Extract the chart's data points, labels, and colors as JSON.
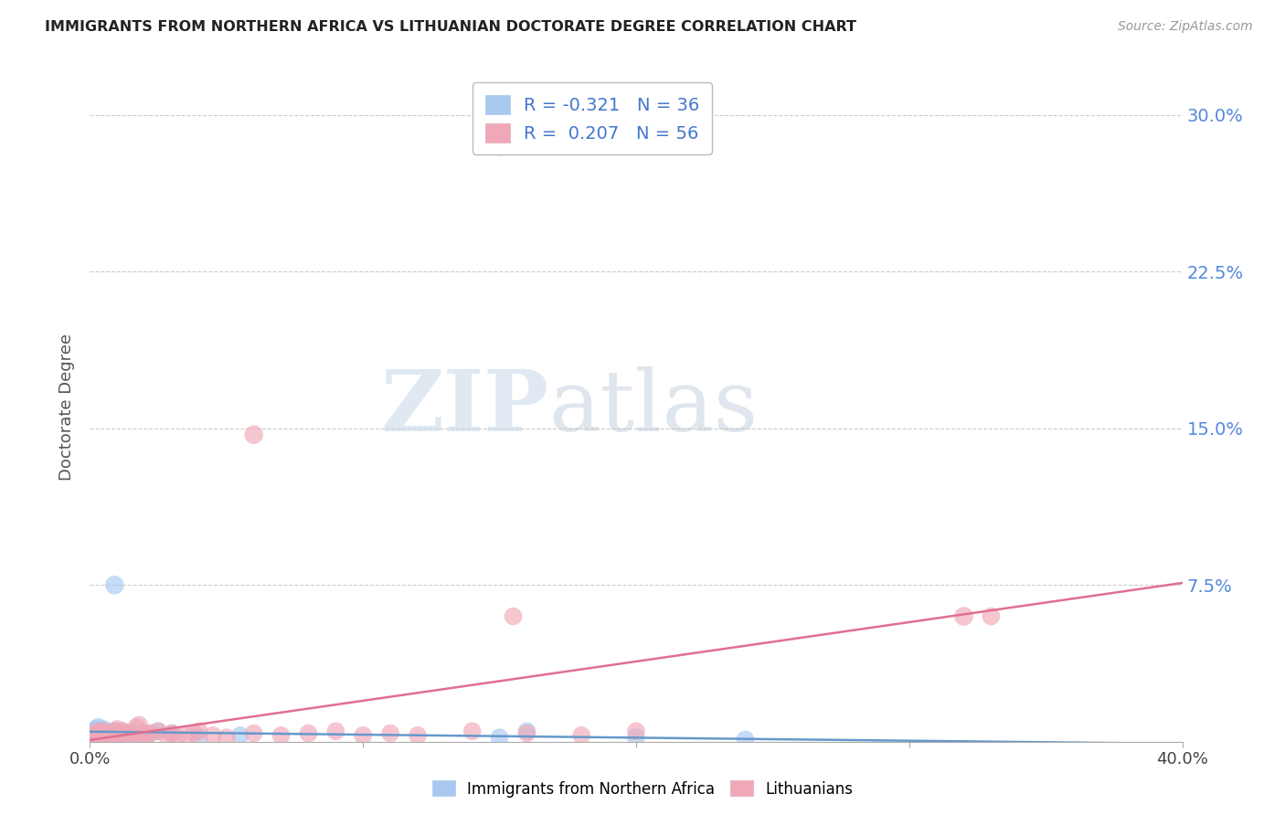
{
  "title": "IMMIGRANTS FROM NORTHERN AFRICA VS LITHUANIAN DOCTORATE DEGREE CORRELATION CHART",
  "source": "Source: ZipAtlas.com",
  "ylabel": "Doctorate Degree",
  "xlim": [
    0.0,
    0.4
  ],
  "ylim": [
    0.0,
    0.32
  ],
  "yticks": [
    0.0,
    0.075,
    0.15,
    0.225,
    0.3
  ],
  "ytick_labels": [
    "",
    "7.5%",
    "15.0%",
    "22.5%",
    "30.0%"
  ],
  "xticks": [
    0.0,
    0.1,
    0.2,
    0.3,
    0.4
  ],
  "xtick_labels": [
    "0.0%",
    "",
    "",
    "",
    "40.0%"
  ],
  "series1_label": "Immigrants from Northern Africa",
  "series1_color": "#a8c8f0",
  "series1_R": -0.321,
  "series1_N": 36,
  "series2_label": "Lithuanians",
  "series2_color": "#f0a8b8",
  "series2_R": 0.207,
  "series2_N": 56,
  "trend1_color": "#6699cc",
  "trend2_color": "#e07090",
  "watermark_zip": "ZIP",
  "watermark_atlas": "atlas",
  "background_color": "#ffffff",
  "series1_x": [
    0.001,
    0.002,
    0.002,
    0.003,
    0.003,
    0.003,
    0.004,
    0.004,
    0.005,
    0.005,
    0.005,
    0.006,
    0.006,
    0.007,
    0.007,
    0.008,
    0.008,
    0.009,
    0.009,
    0.01,
    0.011,
    0.012,
    0.013,
    0.014,
    0.015,
    0.016,
    0.018,
    0.022,
    0.025,
    0.03,
    0.04,
    0.055,
    0.15,
    0.16,
    0.2,
    0.24
  ],
  "series1_y": [
    0.005,
    0.004,
    0.006,
    0.003,
    0.004,
    0.007,
    0.003,
    0.005,
    0.002,
    0.004,
    0.006,
    0.003,
    0.005,
    0.003,
    0.004,
    0.002,
    0.004,
    0.003,
    0.005,
    0.003,
    0.004,
    0.005,
    0.003,
    0.004,
    0.003,
    0.004,
    0.003,
    0.004,
    0.005,
    0.004,
    0.002,
    0.003,
    0.002,
    0.005,
    0.002,
    0.001
  ],
  "series1_outlier_x": [
    0.009
  ],
  "series1_outlier_y": [
    0.075
  ],
  "series2_x": [
    0.001,
    0.002,
    0.002,
    0.003,
    0.003,
    0.004,
    0.004,
    0.005,
    0.005,
    0.006,
    0.006,
    0.007,
    0.007,
    0.008,
    0.008,
    0.009,
    0.009,
    0.01,
    0.01,
    0.011,
    0.011,
    0.012,
    0.012,
    0.013,
    0.013,
    0.014,
    0.015,
    0.016,
    0.017,
    0.018,
    0.019,
    0.02,
    0.021,
    0.022,
    0.025,
    0.028,
    0.03,
    0.032,
    0.035,
    0.038,
    0.04,
    0.045,
    0.05,
    0.06,
    0.07,
    0.08,
    0.09,
    0.1,
    0.11,
    0.12,
    0.14,
    0.16,
    0.18,
    0.2,
    0.33,
    0.155
  ],
  "series2_y": [
    0.003,
    0.002,
    0.004,
    0.003,
    0.005,
    0.002,
    0.004,
    0.003,
    0.005,
    0.002,
    0.004,
    0.003,
    0.004,
    0.002,
    0.003,
    0.003,
    0.005,
    0.004,
    0.006,
    0.003,
    0.004,
    0.003,
    0.005,
    0.003,
    0.004,
    0.003,
    0.004,
    0.003,
    0.007,
    0.008,
    0.003,
    0.004,
    0.003,
    0.004,
    0.005,
    0.003,
    0.004,
    0.002,
    0.003,
    0.004,
    0.005,
    0.003,
    0.002,
    0.004,
    0.003,
    0.004,
    0.005,
    0.003,
    0.004,
    0.003,
    0.005,
    0.004,
    0.003,
    0.005,
    0.06,
    0.06
  ],
  "series2_outlier1_x": [
    0.06
  ],
  "series2_outlier1_y": [
    0.147
  ],
  "series2_outlier2_x": [
    0.15
  ],
  "series2_outlier2_y": [
    0.285
  ],
  "series2_far_x": [
    0.32
  ],
  "series2_far_y": [
    0.06
  ],
  "trend1_x0": 0.0,
  "trend1_y0": 0.0048,
  "trend1_x1": 0.4,
  "trend1_y1": -0.001,
  "trend2_x0": 0.0,
  "trend2_y0": 0.0008,
  "trend2_x1": 0.4,
  "trend2_y1": 0.076
}
